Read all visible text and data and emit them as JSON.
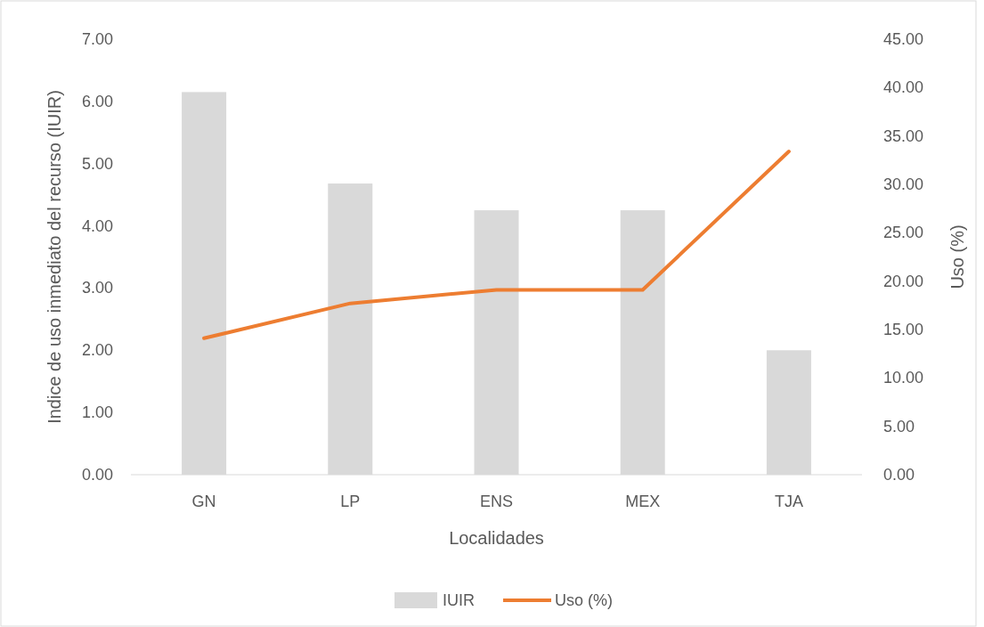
{
  "chart_data": {
    "type": "bar",
    "xlabel": "Localidades",
    "ylabel": "Indice de uso inmediato del recurso (IUIR)",
    "y2label": "Uso (%)",
    "categories": [
      "GN",
      "LP",
      "ENS",
      "MEX",
      "TJA"
    ],
    "series": [
      {
        "name": "IUIR",
        "color": "#d9d9d9",
        "values": [
          6.15,
          4.68,
          4.25,
          4.25,
          2.0
        ]
      },
      {
        "name": "Uso (%)",
        "type": "line",
        "axis": "y2",
        "color": "#ed7d31",
        "values": [
          14.1,
          17.7,
          19.1,
          19.1,
          33.4
        ]
      }
    ],
    "ylim": [
      0,
      7
    ],
    "yticks": [
      {
        "value": 0,
        "label": "0.00"
      },
      {
        "value": 1,
        "label": "1.00"
      },
      {
        "value": 2,
        "label": "2.00"
      },
      {
        "value": 3,
        "label": "3.00"
      },
      {
        "value": 4,
        "label": "4.00"
      },
      {
        "value": 5,
        "label": "5.00"
      },
      {
        "value": 6,
        "label": "6.00"
      },
      {
        "value": 7,
        "label": "7.00"
      }
    ],
    "y2lim": [
      0,
      45
    ],
    "y2ticks": [
      {
        "value": 0,
        "label": "0.00"
      },
      {
        "value": 5,
        "label": "5.00"
      },
      {
        "value": 10,
        "label": "10.00"
      },
      {
        "value": 15,
        "label": "15.00"
      },
      {
        "value": 20,
        "label": "20.00"
      },
      {
        "value": 25,
        "label": "25.00"
      },
      {
        "value": 30,
        "label": "30.00"
      },
      {
        "value": 35,
        "label": "35.00"
      },
      {
        "value": 40,
        "label": "40.00"
      },
      {
        "value": 45,
        "label": "45.00"
      }
    ],
    "legend": "bottom",
    "grid": false
  }
}
